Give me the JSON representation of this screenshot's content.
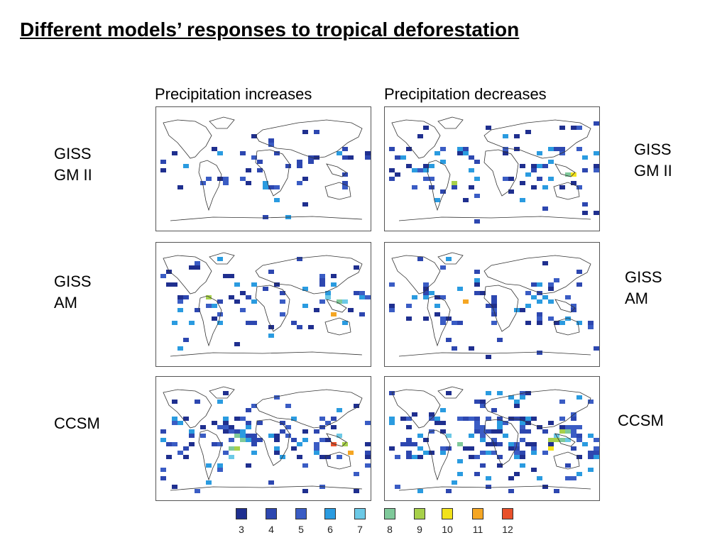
{
  "title": "Different models’ responses to tropical deforestation",
  "columns": {
    "increases": "Precipitation increases",
    "decreases": "Precipitation decreases"
  },
  "rows": [
    {
      "left_line1": "GISS",
      "left_line2": "GM II",
      "right_line1": "GISS",
      "right_line2": "GM II"
    },
    {
      "left_line1": "GISS",
      "left_line2": "AM",
      "right_line1": "GISS",
      "right_line2": "AM"
    },
    {
      "left_line1": "CCSM",
      "left_line2": "",
      "right_line1": "CCSM",
      "right_line2": ""
    }
  ],
  "legend": [
    {
      "label": "3",
      "color": "#1f2f8f"
    },
    {
      "label": "4",
      "color": "#2d47b0"
    },
    {
      "label": "5",
      "color": "#3a5cc4"
    },
    {
      "label": "6",
      "color": "#2a9be0"
    },
    {
      "label": "7",
      "color": "#6cc9e6"
    },
    {
      "label": "8",
      "color": "#7fc99a"
    },
    {
      "label": "9",
      "color": "#a7d04a"
    },
    {
      "label": "10",
      "color": "#f2e21a"
    },
    {
      "label": "11",
      "color": "#f5a623"
    },
    {
      "label": "12",
      "color": "#e8502a"
    }
  ]
}
